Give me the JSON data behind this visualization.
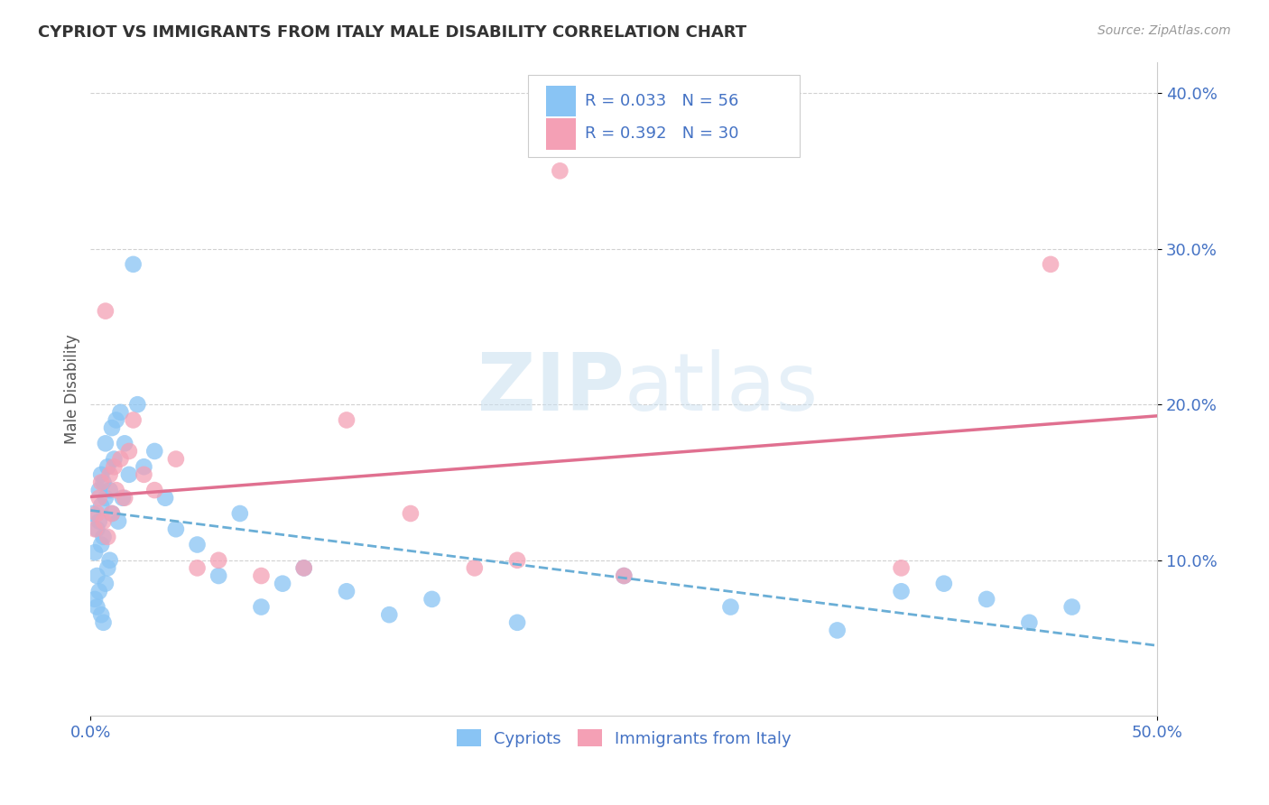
{
  "title": "CYPRIOT VS IMMIGRANTS FROM ITALY MALE DISABILITY CORRELATION CHART",
  "source": "Source: ZipAtlas.com",
  "ylabel": "Male Disability",
  "xlim": [
    0.0,
    0.5
  ],
  "ylim": [
    0.0,
    0.42
  ],
  "yticks": [
    0.1,
    0.2,
    0.3,
    0.4
  ],
  "ytick_labels": [
    "10.0%",
    "20.0%",
    "30.0%",
    "40.0%"
  ],
  "cypriot_color": "#89c4f4",
  "immigrant_color": "#f4a0b5",
  "cypriot_line_color": "#6aaed6",
  "immigrant_line_color": "#e07090",
  "watermark_zip": "ZIP",
  "watermark_atlas": "atlas",
  "cypriot_x": [
    0.001,
    0.002,
    0.002,
    0.003,
    0.003,
    0.003,
    0.004,
    0.004,
    0.004,
    0.005,
    0.005,
    0.005,
    0.005,
    0.006,
    0.006,
    0.006,
    0.007,
    0.007,
    0.007,
    0.008,
    0.008,
    0.009,
    0.009,
    0.01,
    0.01,
    0.011,
    0.012,
    0.013,
    0.014,
    0.015,
    0.016,
    0.018,
    0.02,
    0.022,
    0.025,
    0.03,
    0.035,
    0.04,
    0.05,
    0.06,
    0.07,
    0.08,
    0.09,
    0.1,
    0.12,
    0.14,
    0.16,
    0.2,
    0.25,
    0.3,
    0.35,
    0.38,
    0.4,
    0.42,
    0.44,
    0.46
  ],
  "cypriot_y": [
    0.13,
    0.105,
    0.075,
    0.12,
    0.09,
    0.07,
    0.145,
    0.125,
    0.08,
    0.155,
    0.135,
    0.11,
    0.065,
    0.15,
    0.115,
    0.06,
    0.175,
    0.14,
    0.085,
    0.16,
    0.095,
    0.145,
    0.1,
    0.185,
    0.13,
    0.165,
    0.19,
    0.125,
    0.195,
    0.14,
    0.175,
    0.155,
    0.29,
    0.2,
    0.16,
    0.17,
    0.14,
    0.12,
    0.11,
    0.09,
    0.13,
    0.07,
    0.085,
    0.095,
    0.08,
    0.065,
    0.075,
    0.06,
    0.09,
    0.07,
    0.055,
    0.08,
    0.085,
    0.075,
    0.06,
    0.07
  ],
  "immigrant_x": [
    0.002,
    0.003,
    0.004,
    0.005,
    0.006,
    0.007,
    0.008,
    0.009,
    0.01,
    0.011,
    0.012,
    0.014,
    0.016,
    0.018,
    0.02,
    0.025,
    0.03,
    0.04,
    0.05,
    0.06,
    0.08,
    0.1,
    0.12,
    0.15,
    0.18,
    0.2,
    0.22,
    0.25,
    0.38,
    0.45
  ],
  "immigrant_y": [
    0.12,
    0.13,
    0.14,
    0.15,
    0.125,
    0.26,
    0.115,
    0.155,
    0.13,
    0.16,
    0.145,
    0.165,
    0.14,
    0.17,
    0.19,
    0.155,
    0.145,
    0.165,
    0.095,
    0.1,
    0.09,
    0.095,
    0.19,
    0.13,
    0.095,
    0.1,
    0.35,
    0.09,
    0.095,
    0.29
  ]
}
